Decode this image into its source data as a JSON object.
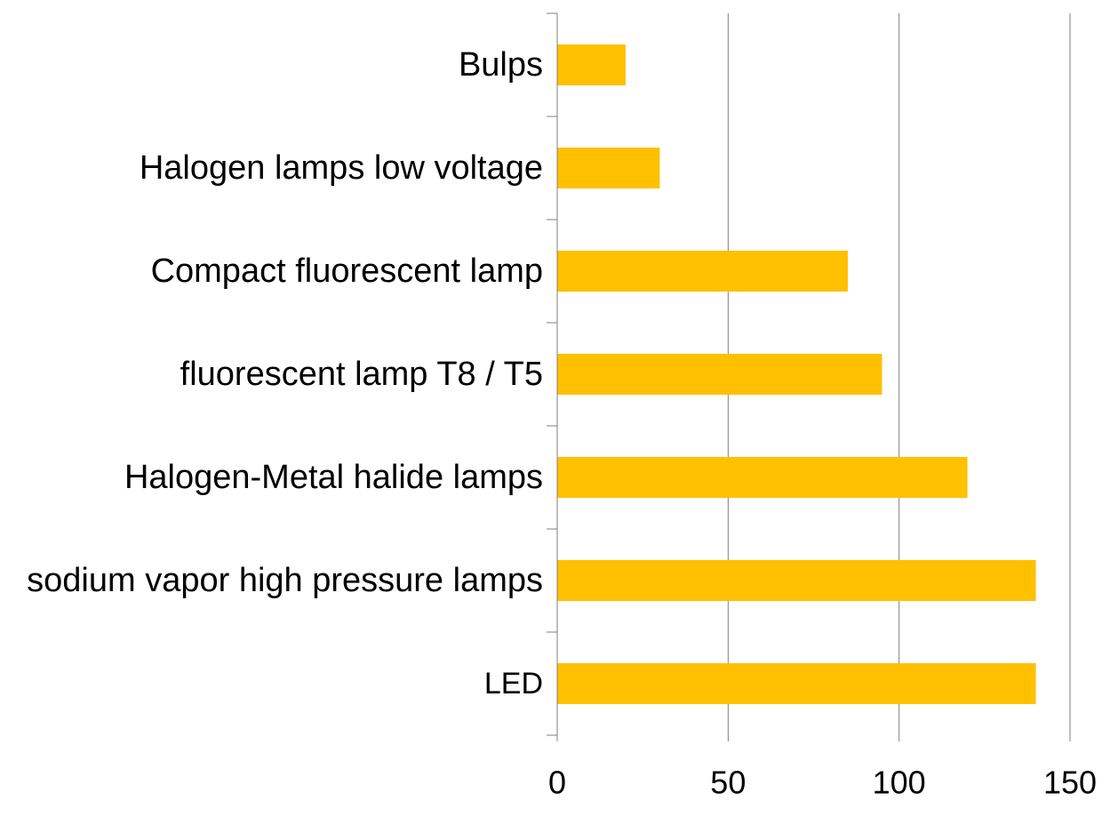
{
  "chart_data": {
    "type": "bar",
    "orientation": "horizontal",
    "categories": [
      "Bulps",
      "Halogen lamps low voltage",
      "Compact fluorescent lamp",
      "fluorescent lamp T8 / T5",
      "Halogen-Metal halide lamps",
      "sodium vapor high pressure lamps",
      "LED"
    ],
    "values": [
      20,
      30,
      85,
      95,
      120,
      140,
      140
    ],
    "xlim": [
      0,
      150
    ],
    "xticks": [
      "0",
      "50",
      "100",
      "150"
    ],
    "title": "",
    "xlabel": "",
    "ylabel": "",
    "grid": "vertical",
    "legend": "none",
    "bar_color": "#FFC000",
    "gridline_color": "#808080",
    "axis_color": "#808080"
  }
}
